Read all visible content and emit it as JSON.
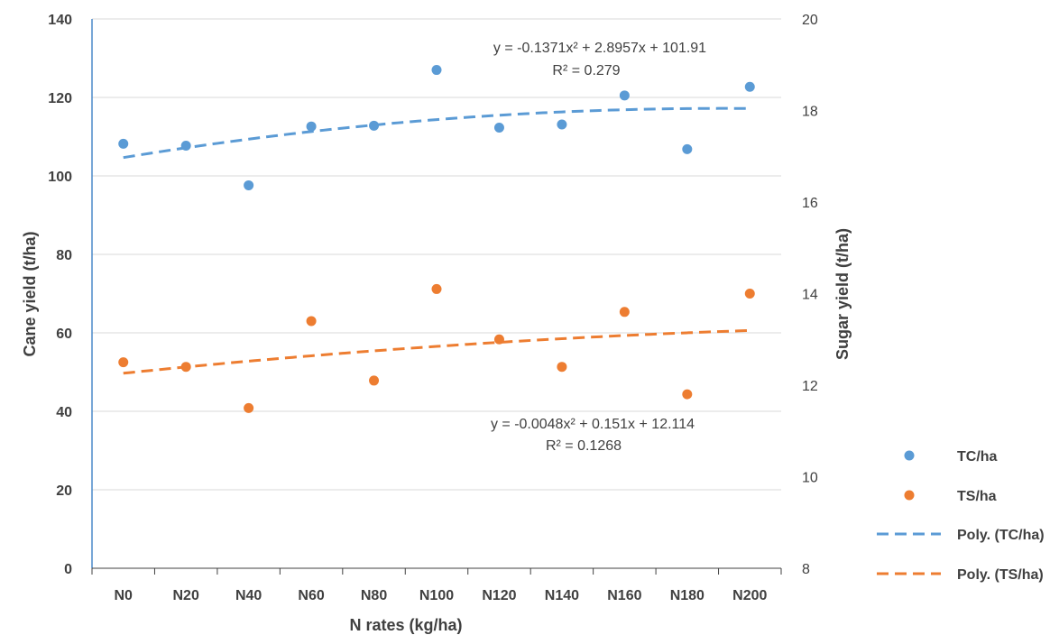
{
  "chart_data": {
    "type": "scatter",
    "categories": [
      "N0",
      "N20",
      "N40",
      "N60",
      "N80",
      "N100",
      "N120",
      "N140",
      "N160",
      "N180",
      "N200"
    ],
    "xlabel": "N rates (kg/ha)",
    "ylabel": "Cane yield (t/ha)",
    "y2label": "Sugar yield (t/ha)",
    "ylim": [
      0,
      140
    ],
    "y2lim": [
      8,
      20
    ],
    "yticks": [
      "0",
      "20",
      "40",
      "60",
      "80",
      "100",
      "120",
      "140"
    ],
    "y2ticks": [
      "8",
      "10",
      "12",
      "14",
      "16",
      "18",
      "20"
    ],
    "grid": true,
    "legend_position": "right",
    "series": [
      {
        "name": "TC/ha",
        "axis": "left",
        "color": "#5B9BD5",
        "values": [
          108.2,
          107.7,
          97.6,
          112.6,
          112.8,
          127.0,
          112.3,
          113.1,
          120.5,
          106.8,
          122.7
        ]
      },
      {
        "name": "TS/ha",
        "axis": "right",
        "color": "#ED7D31",
        "values": [
          12.5,
          12.4,
          11.5,
          13.4,
          12.1,
          14.1,
          13.0,
          12.4,
          13.6,
          11.8,
          14.0
        ]
      }
    ],
    "trendlines": [
      {
        "name": "Poly. (TC/ha)",
        "axis": "left",
        "color": "#5B9BD5",
        "coefficients": [
          -0.1371,
          2.8957,
          101.91
        ],
        "equation": "y = -0.1371x² + 2.8957x + 101.91",
        "r2": "R² = 0.279"
      },
      {
        "name": "Poly. (TS/ha)",
        "axis": "right",
        "color": "#ED7D31",
        "coefficients": [
          -0.0048,
          0.151,
          12.114
        ],
        "equation": "y = -0.0048x² + 0.151x + 12.114",
        "r2": "R² = 0.1268"
      }
    ]
  }
}
